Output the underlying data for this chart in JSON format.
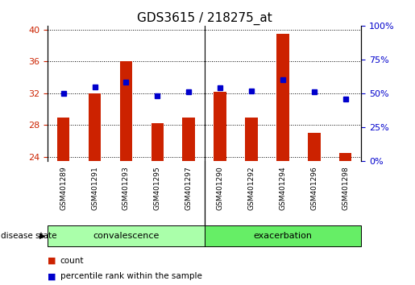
{
  "title": "GDS3615 / 218275_at",
  "samples": [
    "GSM401289",
    "GSM401291",
    "GSM401293",
    "GSM401295",
    "GSM401297",
    "GSM401290",
    "GSM401292",
    "GSM401294",
    "GSM401296",
    "GSM401298"
  ],
  "groups": [
    "convalescence",
    "convalescence",
    "convalescence",
    "convalescence",
    "convalescence",
    "exacerbation",
    "exacerbation",
    "exacerbation",
    "exacerbation",
    "exacerbation"
  ],
  "count_values": [
    29.0,
    32.0,
    36.0,
    28.3,
    29.0,
    32.2,
    29.0,
    39.5,
    27.0,
    24.5
  ],
  "percentile_values": [
    50.0,
    55.0,
    58.0,
    48.0,
    51.0,
    54.0,
    52.0,
    60.0,
    51.0,
    46.0
  ],
  "ylim_left": [
    23.5,
    40.5
  ],
  "ylim_right": [
    0,
    100
  ],
  "yticks_left": [
    24,
    28,
    32,
    36,
    40
  ],
  "yticks_right": [
    0,
    25,
    50,
    75,
    100
  ],
  "bar_color": "#cc2200",
  "dot_color": "#0000cc",
  "grid_color": "#000000",
  "bg_color": "#ffffff",
  "tick_area_color": "#cccccc",
  "convalescence_color": "#aaffaa",
  "exacerbation_color": "#66ee66",
  "title_fontsize": 11,
  "tick_fontsize": 8,
  "legend_label_count": "count",
  "legend_label_percentile": "percentile rank within the sample",
  "group_label": "disease state"
}
